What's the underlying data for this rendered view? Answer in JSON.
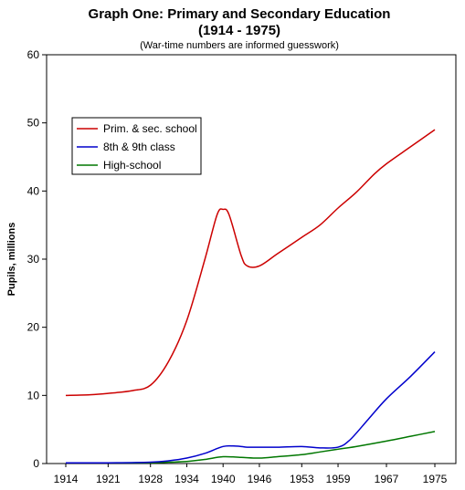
{
  "chart_data": {
    "type": "line",
    "title_line1": "Graph One: Primary and Secondary Education",
    "title_line2": "(1914 - 1975)",
    "subtitle": "(War-time numbers are informed guesswork)",
    "ylabel": "Pupils, millions",
    "xlabel": "",
    "ylim": [
      0,
      60
    ],
    "yticks": [
      0,
      10,
      20,
      30,
      40,
      50,
      60
    ],
    "xticks": [
      "1914",
      "1921",
      "1928",
      "1934",
      "1940",
      "1946",
      "1953",
      "1959",
      "1967",
      "1975"
    ],
    "grid": false,
    "legend_position": "upper-left",
    "series": [
      {
        "name": "Prim. & sec. school",
        "color": "#cc0000",
        "x": [
          1914,
          1918,
          1921,
          1925,
          1928,
          1931,
          1934,
          1937,
          1939,
          1940,
          1941,
          1943,
          1944,
          1946,
          1949,
          1953,
          1956,
          1959,
          1962,
          1965,
          1967,
          1971,
          1975
        ],
        "values": [
          10.0,
          10.1,
          10.3,
          10.7,
          11.5,
          15.0,
          21.0,
          30.0,
          36.5,
          37.3,
          36.5,
          30.5,
          29.0,
          29.0,
          30.8,
          33.2,
          35.0,
          37.5,
          39.8,
          42.5,
          44.0,
          46.5,
          49.0
        ]
      },
      {
        "name": "8th & 9th class",
        "color": "#0000cc",
        "x": [
          1914,
          1921,
          1928,
          1931,
          1934,
          1937,
          1939,
          1940,
          1941,
          1943,
          1944,
          1946,
          1949,
          1953,
          1956,
          1959,
          1961,
          1964,
          1967,
          1971,
          1975
        ],
        "values": [
          0.1,
          0.1,
          0.2,
          0.4,
          0.8,
          1.5,
          2.2,
          2.5,
          2.6,
          2.5,
          2.4,
          2.4,
          2.4,
          2.5,
          2.3,
          2.4,
          3.5,
          6.5,
          9.5,
          12.8,
          16.4
        ]
      },
      {
        "name": "High-school",
        "color": "#007700",
        "x": [
          1914,
          1921,
          1928,
          1931,
          1934,
          1937,
          1940,
          1943,
          1946,
          1949,
          1953,
          1956,
          1959,
          1962,
          1967,
          1971,
          1975
        ],
        "values": [
          0.1,
          0.1,
          0.1,
          0.2,
          0.3,
          0.6,
          1.0,
          0.9,
          0.8,
          1.0,
          1.3,
          1.7,
          2.1,
          2.5,
          3.3,
          4.0,
          4.7
        ]
      }
    ]
  }
}
